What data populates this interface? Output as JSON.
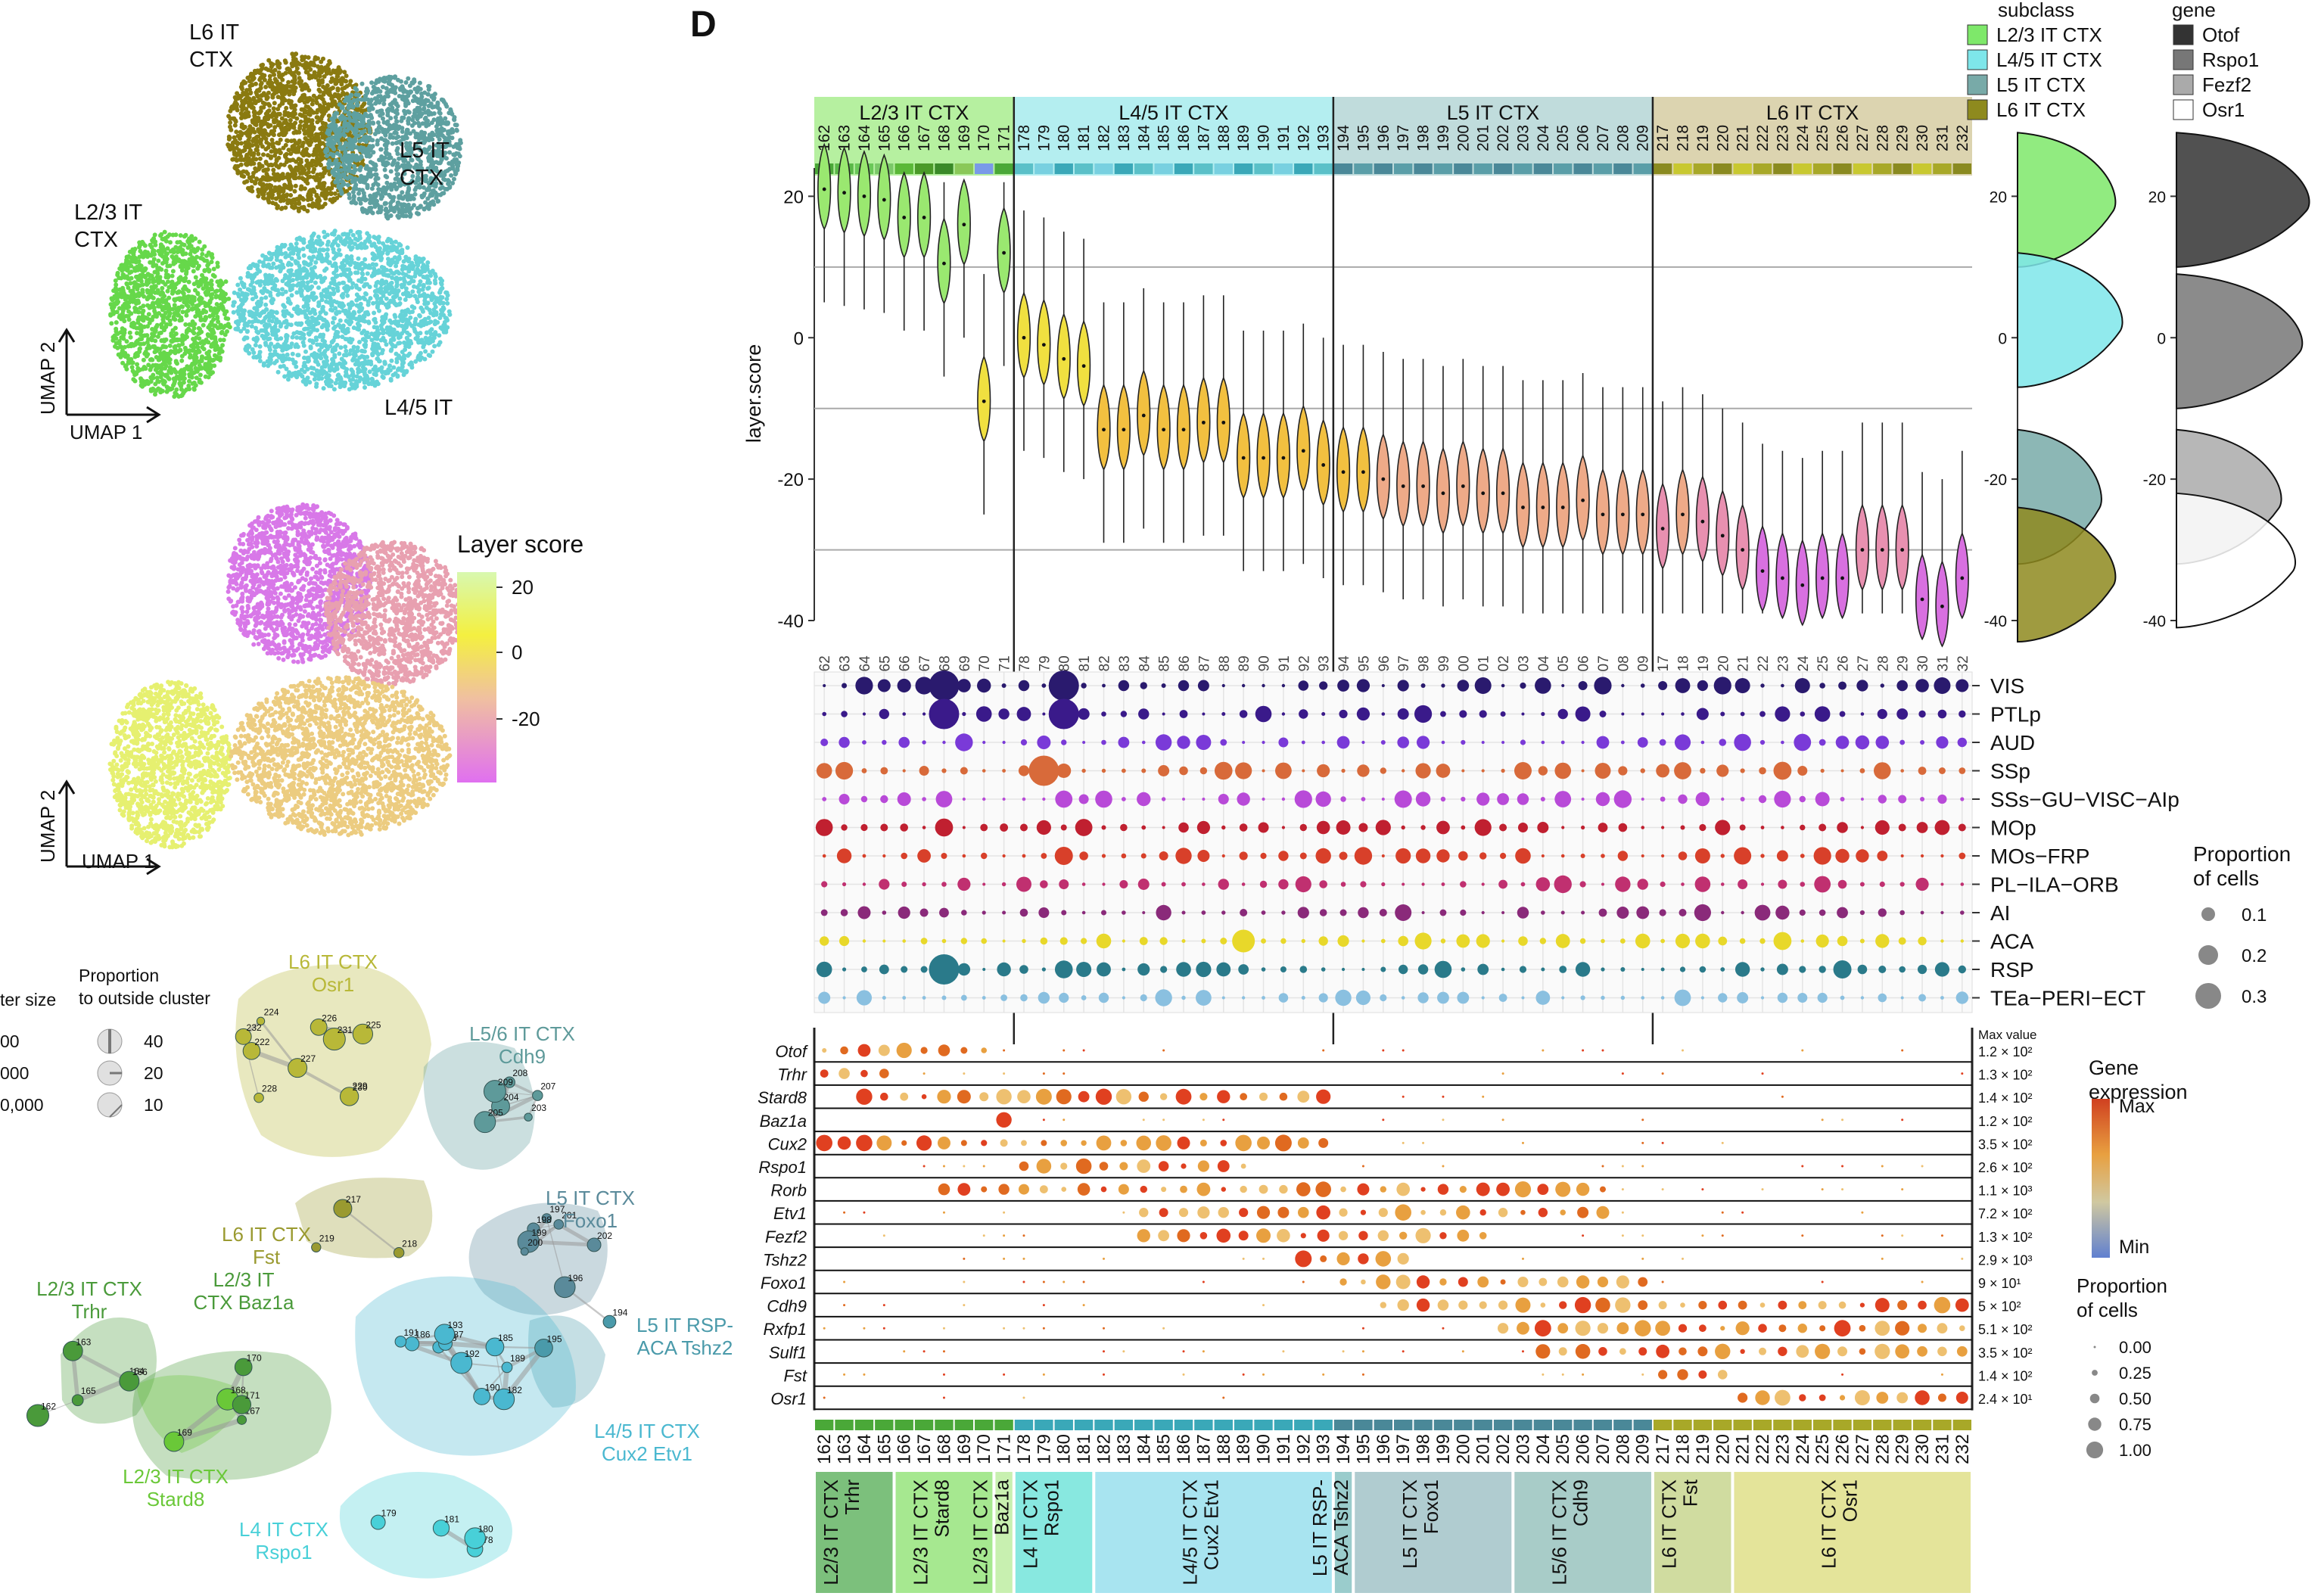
{
  "panel_label": "D",
  "umap_top": {
    "xlabel": "UMAP 1",
    "ylabel": "UMAP 2",
    "clusters": [
      {
        "label": "L6 IT\nCTX",
        "color": "#8a7a10"
      },
      {
        "label": "L5 IT\nCTX",
        "color": "#5ea0a0"
      },
      {
        "label": "L2/3 IT\nCTX",
        "color": "#66d84a"
      },
      {
        "label": "L4/5 IT",
        "color": "#66d3d8"
      }
    ]
  },
  "umap_mid": {
    "xlabel": "UMAP 1",
    "ylabel": "UMAP 2",
    "legend_title": "Layer score",
    "legend_ticks": [
      "20",
      "0",
      "-20"
    ]
  },
  "network": {
    "size_legend_title": "ter size",
    "size_legend_labels": [
      "00",
      "000",
      "0,000"
    ],
    "prop_legend_title": "Proportion\nto outside cluster",
    "prop_legend_labels": [
      "40",
      "20",
      "10"
    ],
    "groups": [
      {
        "label": "L6 IT CTX\nOsr1",
        "color": "#b8b838"
      },
      {
        "label": "L5/6 IT CTX\nCdh9",
        "color": "#5e9a9a"
      },
      {
        "label": "L5 IT CTX\nFoxo1",
        "color": "#5a8a9a"
      },
      {
        "label": "L6 IT CTX\nFst",
        "color": "#9a9a30"
      },
      {
        "label": "L2/3 IT CTX\nTrhr",
        "color": "#4a9a3a"
      },
      {
        "label": "L2/3 IT\nCTX Baz1a",
        "color": "#4a9a3a"
      },
      {
        "label": "L5 IT RSP-\nACA Tshz2",
        "color": "#4a9aaa"
      },
      {
        "label": "L4/5 IT CTX\nCux2 Etv1",
        "color": "#4ab8d0"
      },
      {
        "label": "L2/3 IT CTX\nStard8",
        "color": "#6ac838"
      },
      {
        "label": "L4 IT CTX\nRspo1",
        "color": "#48d0d8"
      }
    ],
    "nodes": [
      "162",
      "163",
      "164",
      "165",
      "166",
      "167",
      "168",
      "169",
      "170",
      "171",
      "178",
      "179",
      "180",
      "181",
      "182",
      "183",
      "185",
      "186",
      "187",
      "189",
      "190",
      "191",
      "192",
      "193",
      "194",
      "195",
      "196",
      "197",
      "198",
      "199",
      "200",
      "201",
      "202",
      "203",
      "204",
      "205",
      "207",
      "208",
      "209",
      "217",
      "218",
      "219",
      "222",
      "224",
      "225",
      "226",
      "227",
      "228",
      "229",
      "230",
      "231",
      "232"
    ]
  },
  "violin": {
    "ylabel": "layer.score",
    "yticks": [
      "20",
      "0",
      "-20",
      "-40"
    ],
    "ylim": [
      -40,
      24
    ],
    "subclasses": [
      {
        "label": "L2/3 IT CTX",
        "color": "#b6f0a0"
      },
      {
        "label": "L4/5 IT CTX",
        "color": "#b4eef0"
      },
      {
        "label": "L5 IT CTX",
        "color": "#c0dcdc"
      },
      {
        "label": "L6 IT CTX",
        "color": "#dcd4b0"
      }
    ]
  },
  "side_density": {
    "subclass_title": "subclass",
    "gene_title": "gene",
    "yticks": [
      "20",
      "0",
      "-20",
      "-40"
    ],
    "subclass_legend": [
      {
        "label": "L2/3 IT CTX",
        "color": "#7ee86a"
      },
      {
        "label": "L4/5 IT CTX",
        "color": "#7ee6ea"
      },
      {
        "label": "L5 IT CTX",
        "color": "#78aaa8"
      },
      {
        "label": "L6 IT CTX",
        "color": "#8e8a1e"
      }
    ],
    "gene_legend": [
      {
        "label": "Otof",
        "color": "#333333"
      },
      {
        "label": "Rspo1",
        "color": "#777777"
      },
      {
        "label": "Fezf2",
        "color": "#aaaaaa"
      },
      {
        "label": "Osr1",
        "color": "#ffffff"
      }
    ]
  },
  "regions": {
    "rows": [
      "VIS",
      "PTLp",
      "AUD",
      "SSp",
      "SSs−GU−VISC−AIp",
      "MOp",
      "MOs−FRP",
      "PL−ILA−ORB",
      "AI",
      "ACA",
      "RSP",
      "TEa−PERI−ECT"
    ],
    "colors": [
      "#2a1a6e",
      "#3a1a8a",
      "#7a3ad8",
      "#d86a3a",
      "#b84ad8",
      "#c02030",
      "#d8402a",
      "#c03070",
      "#8a2a7a",
      "#e8d82a",
      "#2a7a8a",
      "#8ac0e0"
    ],
    "legend_title": "Proportion\nof cells",
    "legend_labels": [
      "0.1",
      "0.2",
      "0.3"
    ]
  },
  "genes": {
    "rows": [
      "Otof",
      "Trhr",
      "Stard8",
      "Baz1a",
      "Cux2",
      "Rspo1",
      "Rorb",
      "Etv1",
      "Fezf2",
      "Tshz2",
      "Foxo1",
      "Cdh9",
      "Rxfp1",
      "Sulf1",
      "Fst",
      "Osr1"
    ],
    "max_header": "Max value",
    "max_values": [
      "1.2 × 10²",
      "1.3 × 10²",
      "1.4 × 10²",
      "1.2 × 10²",
      "3.5 × 10²",
      "2.6 × 10²",
      "1.1 × 10³",
      "7.2 × 10²",
      "1.3 × 10²",
      "2.9 × 10³",
      "9 × 10¹",
      "5 × 10²",
      "5.1 × 10²",
      "3.5 × 10²",
      "1.4 × 10²",
      "2.4 × 10¹"
    ],
    "legend_title": "Gene\nexpression",
    "legend_max": "Max",
    "legend_min": "Min",
    "prop_title": "Proportion\nof cells",
    "prop_labels": [
      "0.00",
      "0.25",
      "0.50",
      "0.75",
      "1.00"
    ]
  },
  "bottom_groups": [
    {
      "label": "L2/3 IT CTX\nTrhr",
      "color": "#7cc07c"
    },
    {
      "label": "L2/3 IT CTX\nStard8",
      "color": "#a6e890"
    },
    {
      "label": "L2/3 IT CTX\nBaz1a",
      "color": "#c8f0b0"
    },
    {
      "label": "L4 IT CTX\nRspo1",
      "color": "#88e8e0"
    },
    {
      "label": "L4/5 IT CTX\nCux2 Etv1",
      "color": "#a8e4f0"
    },
    {
      "label": "L5 IT RSP-\nACA Tshz2",
      "color": "#9acccc"
    },
    {
      "label": "L5 IT CTX\nFoxo1",
      "color": "#b0ccd0"
    },
    {
      "label": "L5/6 IT CTX\nCdh9",
      "color": "#a8ccc8"
    },
    {
      "label": "L6 IT CTX\nFst",
      "color": "#d0dca0"
    },
    {
      "label": "L6 IT CTX\nOsr1",
      "color": "#e4e49a"
    }
  ],
  "chart_data": [
    {
      "type": "violin",
      "ylabel": "layer.score",
      "ylim": [
        -40,
        24
      ],
      "x": [
        "162",
        "163",
        "164",
        "165",
        "166",
        "167",
        "168",
        "169",
        "170",
        "171",
        "178",
        "179",
        "180",
        "181",
        "182",
        "183",
        "184",
        "185",
        "186",
        "187",
        "188",
        "189",
        "190",
        "191",
        "192",
        "193",
        "194",
        "195",
        "196",
        "197",
        "198",
        "199",
        "200",
        "201",
        "202",
        "203",
        "204",
        "205",
        "206",
        "207",
        "208",
        "209",
        "217",
        "218",
        "219",
        "220",
        "221",
        "222",
        "223",
        "224",
        "225",
        "226",
        "227",
        "228",
        "229",
        "230",
        "231",
        "232"
      ],
      "medians": [
        21,
        20.5,
        20,
        19.5,
        17,
        17,
        10.5,
        16,
        -9,
        12,
        0,
        -1,
        -3,
        -4,
        -13,
        -13,
        -11,
        -13,
        -13,
        -12,
        -12,
        -17,
        -17,
        -17,
        -16,
        -18,
        -19,
        -19,
        -20,
        -21,
        -21,
        -22,
        -21,
        -22,
        -22,
        -24,
        -24,
        -24,
        -23,
        -25,
        -25,
        -25,
        -27,
        -25,
        -26,
        -28,
        -30,
        -33,
        -34,
        -35,
        -34,
        -34,
        -30,
        -30,
        -30,
        -37,
        -38,
        -34
      ]
    },
    {
      "type": "dot",
      "rows": [
        "VIS",
        "PTLp",
        "AUD",
        "SSp",
        "SSs−GU−VISC−AIp",
        "MOp",
        "MOs−FRP",
        "PL−ILA−ORB",
        "AI",
        "ACA",
        "RSP",
        "TEa−PERI−ECT"
      ],
      "x": [
        "162",
        "163",
        "164",
        "165",
        "166",
        "167",
        "168",
        "169",
        "170",
        "171",
        "178",
        "179",
        "180",
        "181",
        "182",
        "183",
        "184",
        "185",
        "186",
        "187",
        "188",
        "189",
        "190",
        "191",
        "192",
        "193",
        "194",
        "195",
        "196",
        "197",
        "198",
        "199",
        "200",
        "201",
        "202",
        "203",
        "204",
        "205",
        "206",
        "207",
        "208",
        "209",
        "217",
        "218",
        "219",
        "220",
        "221",
        "222",
        "223",
        "224",
        "225",
        "226",
        "227",
        "228",
        "229",
        "230",
        "231",
        "232"
      ]
    },
    {
      "type": "dot",
      "rows": [
        "Otof",
        "Trhr",
        "Stard8",
        "Baz1a",
        "Cux2",
        "Rspo1",
        "Rorb",
        "Etv1",
        "Fezf2",
        "Tshz2",
        "Foxo1",
        "Cdh9",
        "Rxfp1",
        "Sulf1",
        "Fst",
        "Osr1"
      ],
      "x": [
        "162",
        "163",
        "164",
        "165",
        "166",
        "167",
        "168",
        "169",
        "170",
        "171",
        "178",
        "179",
        "180",
        "181",
        "182",
        "183",
        "184",
        "185",
        "186",
        "187",
        "188",
        "189",
        "190",
        "191",
        "192",
        "193",
        "194",
        "195",
        "196",
        "197",
        "198",
        "199",
        "200",
        "201",
        "202",
        "203",
        "204",
        "205",
        "206",
        "207",
        "208",
        "209",
        "217",
        "218",
        "219",
        "220",
        "221",
        "222",
        "223",
        "224",
        "225",
        "226",
        "227",
        "228",
        "229",
        "230",
        "231",
        "232"
      ]
    }
  ]
}
